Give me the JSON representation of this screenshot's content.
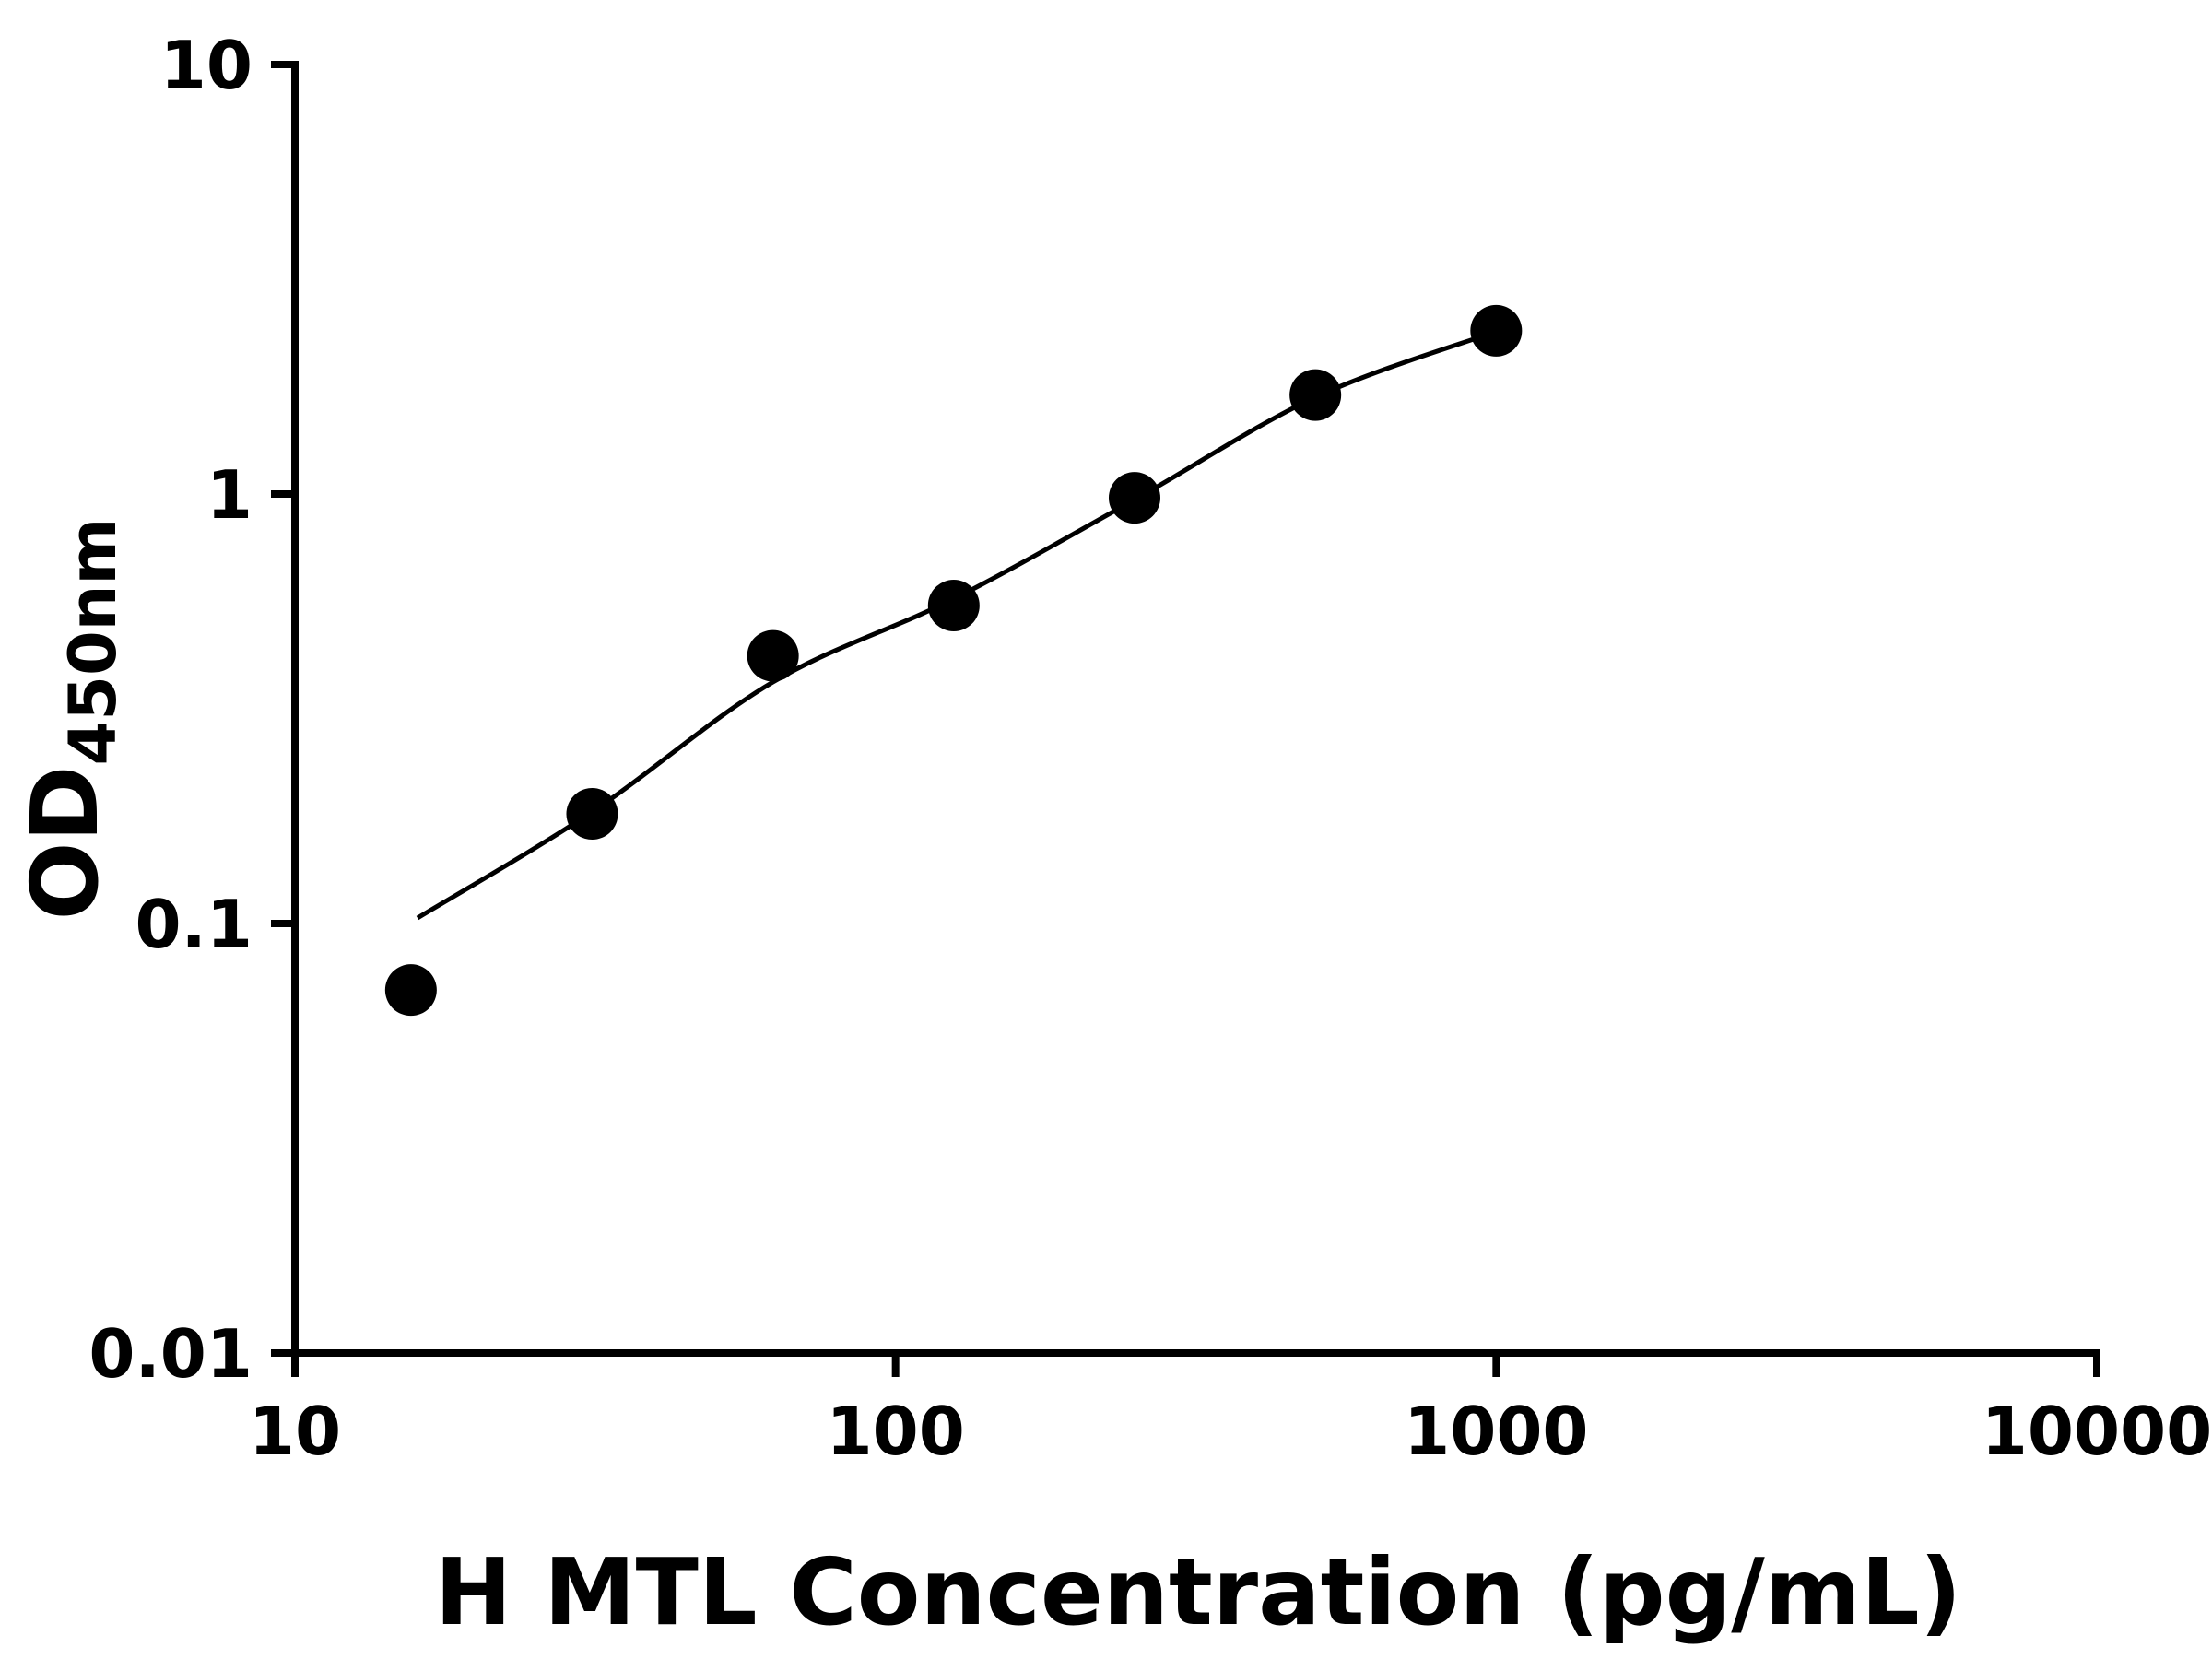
{
  "figure": {
    "background_color": "#ffffff",
    "axis_color": "#000000",
    "marker_color": "#000000",
    "line_color": "#000000"
  },
  "chart_data": {
    "type": "scatter",
    "title": "",
    "xlabel": "H MTL Concentration (pg/mL)",
    "ylabel": "OD450nm",
    "ylabel_main": "OD",
    "ylabel_sub": "450nm",
    "x_scale": "log",
    "y_scale": "log",
    "xlim": [
      10,
      10000
    ],
    "ylim": [
      0.01,
      10
    ],
    "x_ticks": [
      10,
      100,
      1000,
      10000
    ],
    "x_tick_labels": [
      "10",
      "100",
      "1000",
      "10000"
    ],
    "y_ticks": [
      0.01,
      0.1,
      1,
      10
    ],
    "y_tick_labels": [
      "0.01",
      "0.1",
      "1",
      "10"
    ],
    "grid": false,
    "legend": "none",
    "series": [
      {
        "name": "standard-points",
        "type": "scatter",
        "marker": "circle",
        "color": "#000000",
        "x": [
          15.6,
          31.25,
          62.5,
          125,
          250,
          500,
          1000
        ],
        "y": [
          0.07,
          0.18,
          0.42,
          0.55,
          0.98,
          1.7,
          2.4
        ]
      },
      {
        "name": "fit-curve",
        "type": "line",
        "color": "#000000",
        "x": [
          16,
          31.25,
          62.5,
          125,
          250,
          500,
          1000
        ],
        "y": [
          0.103,
          0.182,
          0.365,
          0.57,
          0.97,
          1.68,
          2.39
        ]
      }
    ]
  }
}
